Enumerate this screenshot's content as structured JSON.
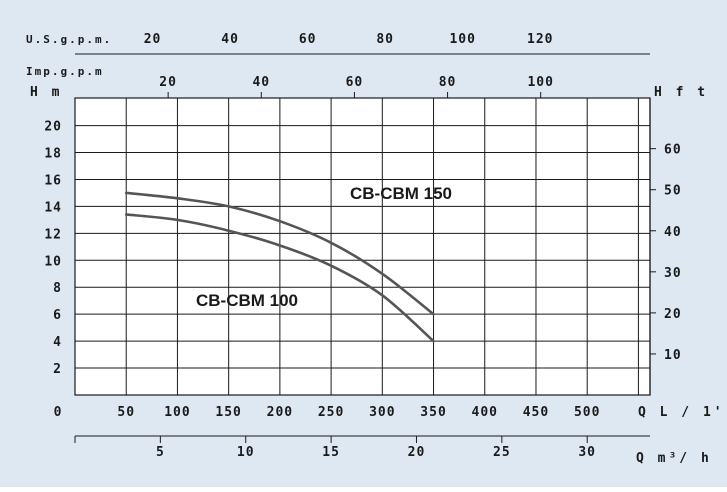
{
  "colors": {
    "background": "#dde8f2",
    "plot_area": "#ffffff",
    "grid": "#1a1a1a",
    "curve": "#555555"
  },
  "chart_data": {
    "type": "line",
    "title": "",
    "series": [
      {
        "name": "CB-CBM 150",
        "x": [
          50,
          100,
          150,
          200,
          250,
          300,
          350
        ],
        "y": [
          15,
          14.6,
          14.0,
          12.9,
          11.3,
          9.0,
          6.0
        ]
      },
      {
        "name": "CB-CBM 100",
        "x": [
          50,
          100,
          150,
          200,
          250,
          300,
          350
        ],
        "y": [
          13.4,
          13.0,
          12.2,
          11.1,
          9.6,
          7.4,
          4.0
        ]
      }
    ],
    "axes": {
      "flow_lpm": {
        "label": "Q L / 1'",
        "min": 0,
        "max": 500,
        "ticks": [
          "0",
          "50",
          "100",
          "150",
          "200",
          "250",
          "300",
          "350",
          "400",
          "450",
          "500"
        ]
      },
      "flow_m3h": {
        "label": "Q m³/ h",
        "ticks": [
          {
            "v": 5,
            "t": "5"
          },
          {
            "v": 10,
            "t": "10"
          },
          {
            "v": 15,
            "t": "15"
          },
          {
            "v": 20,
            "t": "20"
          },
          {
            "v": 25,
            "t": "25"
          },
          {
            "v": 30,
            "t": "30"
          }
        ]
      },
      "head_m": {
        "label": "H m",
        "min": 0,
        "max": 22,
        "ticks": [
          "2",
          "4",
          "6",
          "8",
          "10",
          "12",
          "14",
          "16",
          "18",
          "20"
        ]
      },
      "head_ft": {
        "label": "H f t",
        "ticks": [
          {
            "v": 10,
            "t": "10"
          },
          {
            "v": 20,
            "t": "20"
          },
          {
            "v": 30,
            "t": "30"
          },
          {
            "v": 40,
            "t": "40"
          },
          {
            "v": 50,
            "t": "50"
          },
          {
            "v": 60,
            "t": "60"
          }
        ]
      },
      "us_gpm": {
        "label": "U.S.g.p.m.",
        "ticks": [
          {
            "v": 20,
            "t": "20"
          },
          {
            "v": 40,
            "t": "40"
          },
          {
            "v": 60,
            "t": "60"
          },
          {
            "v": 80,
            "t": "80"
          },
          {
            "v": 100,
            "t": "100"
          },
          {
            "v": 120,
            "t": "120"
          }
        ]
      },
      "imp_gpm": {
        "label": "Imp.g.p.m",
        "ticks": [
          {
            "v": 20,
            "t": "20"
          },
          {
            "v": 40,
            "t": "40"
          },
          {
            "v": 60,
            "t": "60"
          },
          {
            "v": 80,
            "t": "80"
          },
          {
            "v": 100,
            "t": "100"
          }
        ]
      }
    },
    "grid": true
  }
}
